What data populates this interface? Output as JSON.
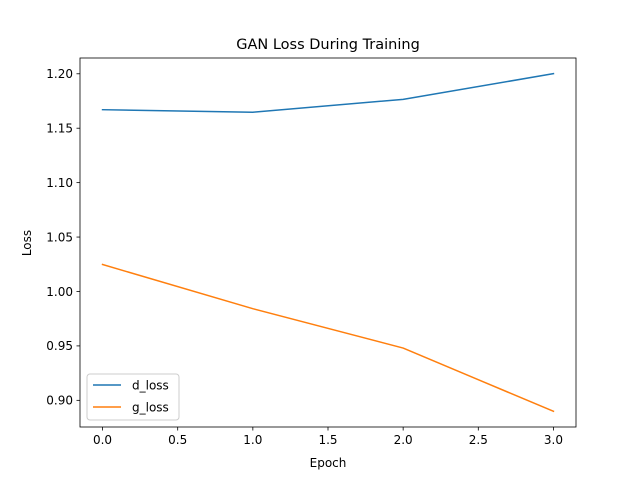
{
  "chart_data": {
    "type": "line",
    "title": "GAN Loss During Training",
    "xlabel": "Epoch",
    "ylabel": "Loss",
    "x": [
      0,
      1,
      2,
      3
    ],
    "xlim": [
      -0.15,
      3.15
    ],
    "ylim": [
      0.8755,
      1.2145
    ],
    "xticks": [
      0.0,
      0.5,
      1.0,
      1.5,
      2.0,
      2.5,
      3.0
    ],
    "xtick_labels": [
      "0.0",
      "0.5",
      "1.0",
      "1.5",
      "2.0",
      "2.5",
      "3.0"
    ],
    "yticks": [
      0.9,
      0.95,
      1.0,
      1.05,
      1.1,
      1.15,
      1.2
    ],
    "ytick_labels": [
      "0.90",
      "0.95",
      "1.00",
      "1.05",
      "1.10",
      "1.15",
      "1.20"
    ],
    "grid": false,
    "legend_position": "lower-left",
    "series": [
      {
        "name": "d_loss",
        "color": "#1f77b4",
        "values": [
          1.167,
          1.1647,
          1.1765,
          1.2001
        ]
      },
      {
        "name": "g_loss",
        "color": "#ff7f0e",
        "values": [
          1.0248,
          0.9842,
          0.948,
          0.8899
        ]
      }
    ]
  }
}
